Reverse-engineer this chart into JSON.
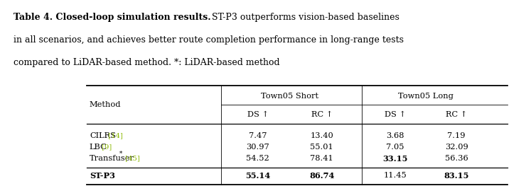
{
  "caption_line1_bold": "Table 4. Closed-loop simulation results.",
  "caption_line1_normal": " ST-P3 outperforms vision-based baselines",
  "caption_line2": "in all scenarios, and achieves better route completion performance in long-range tests",
  "caption_line3": "compared to LiDAR-based method. *: LiDAR-based method",
  "col_group_labels": [
    "Town05 Short",
    "Town05 Long"
  ],
  "sub_headers": [
    "DS ↑",
    "RC ↑",
    "DS ↑",
    "RC ↑"
  ],
  "methods": [
    {
      "name": "CILRS",
      "star": false,
      "ref": "[14]",
      "vals": [
        "7.47",
        "13.40",
        "3.68",
        "7.19"
      ],
      "bold_vals": [
        false,
        false,
        false,
        false
      ],
      "bold_name": false
    },
    {
      "name": "LBC",
      "star": false,
      "ref": "[9]",
      "vals": [
        "30.97",
        "55.01",
        "7.05",
        "32.09"
      ],
      "bold_vals": [
        false,
        false,
        false,
        false
      ],
      "bold_name": false
    },
    {
      "name": "Transfuser",
      "star": true,
      "ref": "[45]",
      "vals": [
        "54.52",
        "78.41",
        "33.15",
        "56.36"
      ],
      "bold_vals": [
        false,
        false,
        true,
        false
      ],
      "bold_name": false
    },
    {
      "name": "ST-P3",
      "star": false,
      "ref": "",
      "vals": [
        "55.14",
        "86.74",
        "11.45",
        "83.15"
      ],
      "bold_vals": [
        true,
        true,
        false,
        true
      ],
      "bold_name": true
    }
  ],
  "ref_color": "#8ab800",
  "bg_color": "#ffffff",
  "text_color": "#000000",
  "fig_width": 7.2,
  "fig_height": 2.41,
  "caption_fontsize": 9.0,
  "table_fontsize": 8.2
}
